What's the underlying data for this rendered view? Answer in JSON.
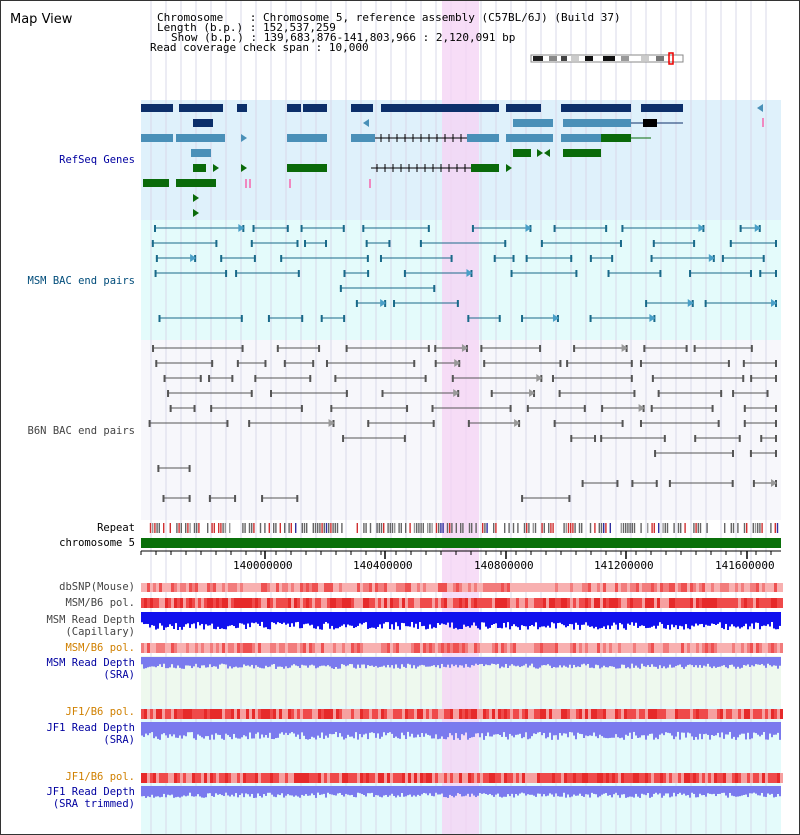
{
  "title": "Map View",
  "header": {
    "chromosome_label": "Chromosome",
    "chromosome_value": "Chromosome 5, reference assembly (C57BL/6J) (Build 37)",
    "length_label": "Length (b.p.)",
    "length_value": "152,537,259",
    "show_label": "Show (b.p.)",
    "show_value": "139,683,876-141,803,966 : 2,120,091 bp",
    "coverage_label": "Read coverage check span",
    "coverage_value": "10,000"
  },
  "tracks": {
    "refseq": "RefSeq Genes",
    "msm_bac": "MSM BAC end pairs",
    "b6n_bac": "B6N BAC end pairs",
    "repeat": "Repeat",
    "chromosome": "chromosome 5",
    "dbsnp": "dbSNP(Mouse)",
    "msm_b6_pol_1": "MSM/B6 pol.",
    "msm_depth_cap_1": "MSM Read Depth",
    "msm_depth_cap_2": "(Capillary)",
    "msm_b6_pol_2": "MSM/B6 pol.",
    "msm_depth_sra_1": "MSM Read Depth",
    "msm_depth_sra_2": "(SRA)",
    "jf1_b6_pol_1": "JF1/B6 pol.",
    "jf1_depth_sra_1": "JF1 Read Depth",
    "jf1_depth_sra_2": "(SRA)",
    "jf1_b6_pol_2": "JF1/B6 pol.",
    "jf1_depth_trim_1": "JF1 Read Depth",
    "jf1_depth_trim_2": "(SRA trimmed)"
  },
  "ruler": {
    "ticks": [
      "140000000",
      "140400000",
      "140800000",
      "141200000",
      "141600000"
    ]
  },
  "colors": {
    "refseq_bg": "#dff1fb",
    "msm_bac_bg": "#e4fbfb",
    "b6n_bg": "#f7f7fb",
    "highlight": "#f5d4f5",
    "navy": "#0c2f6a",
    "steel": "#4a90b8",
    "green": "#0a6a0a",
    "teal_line": "#1a6a8a",
    "gray_line": "#555555",
    "chrom_green": "#0a700a",
    "label_blue": "#0000a0",
    "label_teal": "#004c7a",
    "label_orange": "#d08000",
    "snp_red": "#ef4444",
    "depth_blue": "#1010ee",
    "depth_violet": "#7a7aee"
  }
}
